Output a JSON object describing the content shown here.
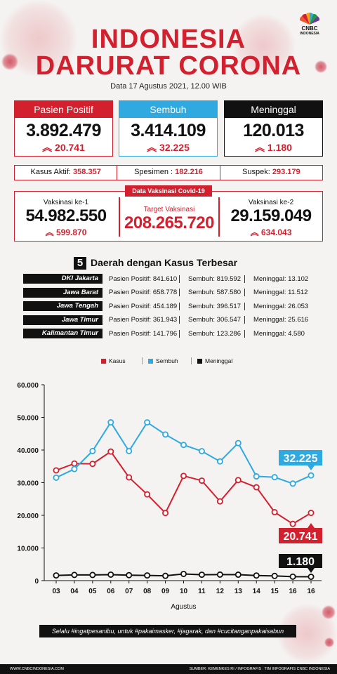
{
  "header": {
    "title_line1": "INDONESIA",
    "title_line2": "DARURAT CORONA",
    "date": "Data 17 Agustus 2021, 12.00 WIB",
    "logo_main": "CNBC",
    "logo_sub": "INDONESIA"
  },
  "cards": [
    {
      "label": "Pasien Positif",
      "value": "3.892.479",
      "delta": "20.741"
    },
    {
      "label": "Sembuh",
      "value": "3.414.109",
      "delta": "32.225"
    },
    {
      "label": "Meninggal",
      "value": "120.013",
      "delta": "1.180"
    }
  ],
  "stats": {
    "aktif_label": "Kasus Aktif:",
    "aktif_value": "358.357",
    "spesimen_label": "Spesimen :",
    "spesimen_value": "182.216",
    "suspek_label": "Suspek:",
    "suspek_value": "293.179"
  },
  "vaccine": {
    "badge": "Data Vaksinasi Covid-19",
    "dose1_label": "Vaksinasi ke-1",
    "dose1_value": "54.982.550",
    "dose1_delta": "599.870",
    "target_label": "Target Vaksinasi",
    "target_value": "208.265.720",
    "dose2_label": "Vaksinasi ke-2",
    "dose2_value": "29.159.049",
    "dose2_delta": "634.043"
  },
  "regions": {
    "number": "5",
    "title": "Daerah dengan Kasus Terbesar",
    "rows": [
      {
        "name": "DKI Jakarta",
        "positif": "Pasien Positif: 841.610",
        "sembuh": "Sembuh: 819.592",
        "meninggal": "Meninggal: 13.102"
      },
      {
        "name": "Jawa Barat",
        "positif": "Pasien Positif: 658.778",
        "sembuh": "Sembuh: 587.580",
        "meninggal": "Meninggal: 11.512"
      },
      {
        "name": "Jawa Tengah",
        "positif": "Pasien Positif: 454.189",
        "sembuh": "Sembuh: 396.517",
        "meninggal": "Meninggal: 26.053"
      },
      {
        "name": "Jawa Timur",
        "positif": "Pasien Positif: 361.943",
        "sembuh": "Sembuh: 306.547",
        "meninggal": "Meninggal: 25.616"
      },
      {
        "name": "Kalimantan Timur",
        "positif": "Pasien Positif: 141.796",
        "sembuh": "Sembuh: 123.286",
        "meninggal": "Meninggal: 4.580"
      }
    ]
  },
  "chart_data": {
    "type": "line",
    "xlabel": "Agustus",
    "ylabel": "",
    "x": [
      "03",
      "04",
      "05",
      "06",
      "07",
      "08",
      "09",
      "10",
      "11",
      "12",
      "13",
      "14",
      "15",
      "16",
      "16"
    ],
    "ylim": [
      0,
      60000
    ],
    "yticks": [
      "0",
      "10.000",
      "20.000",
      "30.000",
      "40.000",
      "50.000",
      "60.000"
    ],
    "legend_position": "top-center",
    "series": [
      {
        "name": "Kasus",
        "color": "#d3202e",
        "values": [
          33772,
          35867,
          35764,
          39532,
          31624,
          26415,
          20709,
          32081,
          30625,
          24272,
          30788,
          28598,
          20967,
          17384,
          20741
        ]
      },
      {
        "name": "Sembuh",
        "color": "#2fa9e0",
        "values": [
          31543,
          34186,
          39703,
          48488,
          39677,
          48475,
          44765,
          41566,
          39650,
          36506,
          42135,
          31931,
          31687,
          29720,
          32225
        ]
      },
      {
        "name": "Meninggal",
        "color": "#111111",
        "values": [
          1598,
          1747,
          1734,
          1838,
          1671,
          1588,
          1475,
          2048,
          1804,
          1851,
          1823,
          1565,
          1442,
          1222,
          1180
        ]
      }
    ],
    "end_labels": [
      "32.225",
      "20.741",
      "1.180"
    ]
  },
  "footer": {
    "slogan": "Selalu #ingatpesanibu, untuk #pakaimasker, #jagarak, dan #cucitanganpakaisabun",
    "left": "WWW.CNBCINDONESIA.COM",
    "right": "SUMBER: KEMENKES RI / INFOGRAFIS : TIM INFOGRAFIS CNBC INDONESIA"
  },
  "colors": {
    "red": "#d3202e",
    "blue": "#2fa9e0",
    "black": "#111111"
  }
}
